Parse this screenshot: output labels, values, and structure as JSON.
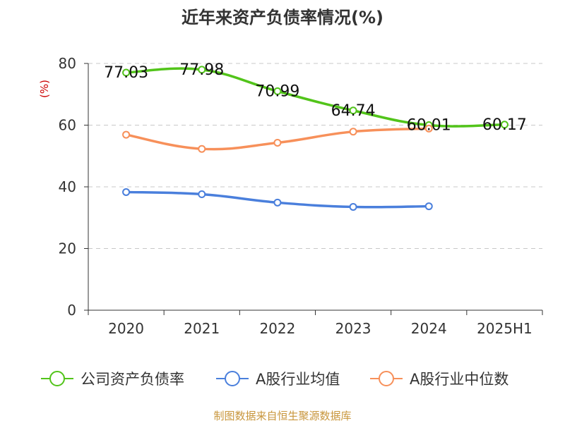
{
  "chart_data": {
    "type": "line",
    "title": "近年来资产负债率情况(%)",
    "ylabel": "(%)",
    "xlabel": "",
    "categories": [
      "2020",
      "2021",
      "2022",
      "2023",
      "2024",
      "2025H1"
    ],
    "ylim": [
      0,
      80
    ],
    "yticks": [
      0,
      20,
      40,
      60,
      80
    ],
    "grid": true,
    "legend_position": "bottom",
    "series": [
      {
        "name": "公司资产负债率",
        "color": "#52c41a",
        "show_labels": true,
        "values": [
          77.03,
          77.98,
          70.99,
          64.74,
          60.01,
          60.17
        ],
        "labels": [
          "77.03",
          "77.98",
          "70.99",
          "64.74",
          "60.01",
          "60.17"
        ]
      },
      {
        "name": "A股行业均值",
        "color": "#4a7fdc",
        "show_labels": false,
        "values": [
          38.3,
          37.6,
          34.9,
          33.5,
          33.7,
          null
        ]
      },
      {
        "name": "A股行业中位数",
        "color": "#f7905a",
        "show_labels": false,
        "values": [
          56.9,
          52.3,
          54.3,
          57.9,
          58.9,
          null
        ]
      }
    ]
  },
  "source": "制图数据来自恒生聚源数据库"
}
